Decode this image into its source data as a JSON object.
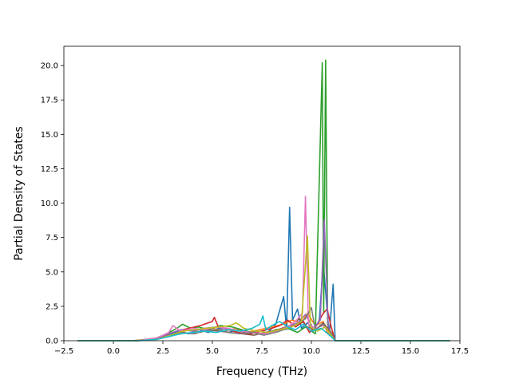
{
  "chart_data": {
    "type": "line",
    "title": "",
    "xlabel": "Frequency (THz)",
    "ylabel": "Partial Density of States",
    "xlim": [
      -2.5,
      17.5
    ],
    "ylim": [
      0,
      21.4
    ],
    "xticks": [
      -2.5,
      0.0,
      2.5,
      5.0,
      7.5,
      10.0,
      12.5,
      15.0,
      17.5
    ],
    "xtick_labels": [
      "−2.5",
      "0.0",
      "2.5",
      "5.0",
      "7.5",
      "10.0",
      "12.5",
      "15.0",
      "17.5"
    ],
    "yticks": [
      0.0,
      2.5,
      5.0,
      7.5,
      10.0,
      12.5,
      15.0,
      17.5,
      20.0
    ],
    "ytick_labels": [
      "0.0",
      "2.5",
      "5.0",
      "7.5",
      "10.0",
      "12.5",
      "15.0",
      "17.5",
      "20.0"
    ],
    "grid": false,
    "legend": "none",
    "series": [
      {
        "color": "#1f77b4",
        "points": [
          [
            -1.8,
            0
          ],
          [
            0.8,
            0
          ],
          [
            1.5,
            0.05
          ],
          [
            2.2,
            0.2
          ],
          [
            2.8,
            0.4
          ],
          [
            3.3,
            0.7
          ],
          [
            3.8,
            0.5
          ],
          [
            4.3,
            0.8
          ],
          [
            4.8,
            0.6
          ],
          [
            5.3,
            0.9
          ],
          [
            5.8,
            0.6
          ],
          [
            6.3,
            0.8
          ],
          [
            6.8,
            0.5
          ],
          [
            7.3,
            0.7
          ],
          [
            7.8,
            0.6
          ],
          [
            8.2,
            1.2
          ],
          [
            8.6,
            3.2
          ],
          [
            8.75,
            0.8
          ],
          [
            8.9,
            9.7
          ],
          [
            9.05,
            1.5
          ],
          [
            9.3,
            2.3
          ],
          [
            9.5,
            0.9
          ],
          [
            9.8,
            1.3
          ],
          [
            10.1,
            0.7
          ],
          [
            10.4,
            1.5
          ],
          [
            10.6,
            5.7
          ],
          [
            10.75,
            3.0
          ],
          [
            10.9,
            0.4
          ],
          [
            11.1,
            4.1
          ],
          [
            11.2,
            0
          ],
          [
            17.0,
            0
          ]
        ]
      },
      {
        "color": "#ff7f0e",
        "points": [
          [
            -1.8,
            0
          ],
          [
            1.0,
            0
          ],
          [
            2.0,
            0.15
          ],
          [
            2.6,
            0.3
          ],
          [
            3.2,
            0.5
          ],
          [
            3.8,
            0.8
          ],
          [
            4.4,
            0.6
          ],
          [
            5.0,
            0.9
          ],
          [
            5.6,
            0.7
          ],
          [
            6.2,
            0.9
          ],
          [
            6.8,
            0.6
          ],
          [
            7.4,
            0.8
          ],
          [
            8.0,
            1.0
          ],
          [
            8.6,
            1.2
          ],
          [
            9.0,
            1.5
          ],
          [
            9.5,
            1.3
          ],
          [
            9.8,
            2.0
          ],
          [
            10.2,
            1.1
          ],
          [
            10.6,
            1.4
          ],
          [
            10.8,
            0.6
          ],
          [
            11.1,
            0.3
          ],
          [
            11.2,
            0
          ],
          [
            17.0,
            0
          ]
        ]
      },
      {
        "color": "#2ca02c",
        "points": [
          [
            -1.8,
            0
          ],
          [
            1.0,
            0
          ],
          [
            2.0,
            0.1
          ],
          [
            2.7,
            0.5
          ],
          [
            3.2,
            0.9
          ],
          [
            3.5,
            1.2
          ],
          [
            3.9,
            0.9
          ],
          [
            4.3,
            1.0
          ],
          [
            4.8,
            0.8
          ],
          [
            5.4,
            1.1
          ],
          [
            6.0,
            1.0
          ],
          [
            6.5,
            0.8
          ],
          [
            7.0,
            0.6
          ],
          [
            7.6,
            0.5
          ],
          [
            8.2,
            0.8
          ],
          [
            8.8,
            0.9
          ],
          [
            9.3,
            0.6
          ],
          [
            9.7,
            1.0
          ],
          [
            10.2,
            0.5
          ],
          [
            10.55,
            20.2
          ],
          [
            10.62,
            2.0
          ],
          [
            10.72,
            20.4
          ],
          [
            10.82,
            1.2
          ],
          [
            11.0,
            0.4
          ],
          [
            11.2,
            0
          ],
          [
            17.0,
            0
          ]
        ]
      },
      {
        "color": "#d62728",
        "points": [
          [
            -1.8,
            0
          ],
          [
            1.2,
            0
          ],
          [
            2.0,
            0.1
          ],
          [
            2.6,
            0.4
          ],
          [
            3.2,
            0.7
          ],
          [
            3.8,
            0.9
          ],
          [
            4.4,
            1.1
          ],
          [
            5.0,
            1.4
          ],
          [
            5.1,
            1.7
          ],
          [
            5.3,
            1.0
          ],
          [
            5.8,
            0.8
          ],
          [
            6.3,
            0.6
          ],
          [
            6.9,
            0.5
          ],
          [
            7.5,
            0.7
          ],
          [
            8.0,
            0.9
          ],
          [
            8.4,
            1.1
          ],
          [
            8.8,
            1.5
          ],
          [
            9.2,
            1.0
          ],
          [
            9.6,
            1.4
          ],
          [
            9.9,
            0.6
          ],
          [
            10.3,
            1.2
          ],
          [
            10.6,
            2.0
          ],
          [
            10.8,
            2.3
          ],
          [
            11.0,
            1.0
          ],
          [
            11.2,
            0
          ],
          [
            17.0,
            0
          ]
        ]
      },
      {
        "color": "#9467bd",
        "points": [
          [
            -1.8,
            0
          ],
          [
            1.2,
            0
          ],
          [
            2.2,
            0.2
          ],
          [
            2.8,
            0.5
          ],
          [
            3.4,
            0.8
          ],
          [
            4.0,
            0.7
          ],
          [
            4.6,
            0.9
          ],
          [
            5.2,
            1.0
          ],
          [
            5.8,
            0.8
          ],
          [
            6.4,
            0.7
          ],
          [
            7.0,
            0.6
          ],
          [
            7.6,
            0.5
          ],
          [
            8.2,
            0.7
          ],
          [
            8.8,
            1.0
          ],
          [
            9.3,
            1.3
          ],
          [
            9.7,
            1.9
          ],
          [
            10.1,
            0.9
          ],
          [
            10.45,
            1.5
          ],
          [
            10.65,
            8.8
          ],
          [
            10.85,
            1.0
          ],
          [
            11.0,
            0.5
          ],
          [
            11.2,
            0
          ],
          [
            17.0,
            0
          ]
        ]
      },
      {
        "color": "#8c564b",
        "points": [
          [
            -1.8,
            0
          ],
          [
            1.2,
            0
          ],
          [
            2.2,
            0.1
          ],
          [
            2.9,
            0.4
          ],
          [
            3.5,
            0.6
          ],
          [
            4.1,
            0.5
          ],
          [
            4.7,
            0.8
          ],
          [
            5.3,
            0.7
          ],
          [
            5.9,
            0.6
          ],
          [
            6.5,
            0.5
          ],
          [
            7.1,
            0.4
          ],
          [
            7.7,
            0.6
          ],
          [
            8.3,
            0.8
          ],
          [
            8.9,
            1.1
          ],
          [
            9.4,
            1.6
          ],
          [
            9.8,
            1.0
          ],
          [
            10.2,
            0.8
          ],
          [
            10.6,
            1.3
          ],
          [
            11.0,
            0.6
          ],
          [
            11.2,
            0
          ],
          [
            17.0,
            0
          ]
        ]
      },
      {
        "color": "#e377c2",
        "points": [
          [
            -1.8,
            0
          ],
          [
            1.2,
            0
          ],
          [
            2.2,
            0.2
          ],
          [
            2.8,
            0.6
          ],
          [
            3.0,
            1.1
          ],
          [
            3.4,
            0.7
          ],
          [
            4.0,
            0.9
          ],
          [
            4.6,
            0.8
          ],
          [
            5.2,
            1.0
          ],
          [
            5.8,
            0.9
          ],
          [
            6.4,
            0.7
          ],
          [
            7.0,
            0.6
          ],
          [
            7.6,
            0.5
          ],
          [
            8.2,
            0.7
          ],
          [
            8.8,
            1.0
          ],
          [
            9.2,
            1.4
          ],
          [
            9.55,
            2.0
          ],
          [
            9.7,
            10.5
          ],
          [
            9.85,
            1.2
          ],
          [
            10.2,
            0.9
          ],
          [
            10.6,
            1.1
          ],
          [
            11.0,
            0.4
          ],
          [
            11.2,
            0
          ],
          [
            17.0,
            0
          ]
        ]
      },
      {
        "color": "#7f7f7f",
        "points": [
          [
            -1.8,
            0
          ],
          [
            1.2,
            0
          ],
          [
            2.2,
            0.1
          ],
          [
            2.8,
            0.3
          ],
          [
            3.4,
            0.6
          ],
          [
            4.0,
            0.5
          ],
          [
            4.6,
            0.7
          ],
          [
            5.2,
            0.8
          ],
          [
            5.8,
            0.6
          ],
          [
            6.4,
            0.5
          ],
          [
            7.0,
            0.6
          ],
          [
            7.6,
            0.4
          ],
          [
            8.2,
            0.6
          ],
          [
            8.8,
            0.9
          ],
          [
            9.3,
            1.2
          ],
          [
            9.7,
            1.6
          ],
          [
            10.0,
            2.4
          ],
          [
            10.2,
            0.8
          ],
          [
            10.6,
            1.2
          ],
          [
            11.0,
            0.5
          ],
          [
            11.2,
            0
          ],
          [
            17.0,
            0
          ]
        ]
      },
      {
        "color": "#bcbd22",
        "points": [
          [
            -1.8,
            0
          ],
          [
            1.2,
            0
          ],
          [
            2.2,
            0.1
          ],
          [
            2.9,
            0.4
          ],
          [
            3.5,
            0.7
          ],
          [
            4.1,
            0.8
          ],
          [
            4.7,
            0.9
          ],
          [
            5.3,
            1.0
          ],
          [
            5.9,
            1.1
          ],
          [
            6.2,
            1.3
          ],
          [
            6.6,
            0.9
          ],
          [
            7.2,
            0.7
          ],
          [
            7.8,
            0.6
          ],
          [
            8.4,
            0.8
          ],
          [
            9.0,
            1.0
          ],
          [
            9.5,
            1.4
          ],
          [
            9.8,
            7.6
          ],
          [
            9.95,
            1.0
          ],
          [
            10.3,
            0.7
          ],
          [
            10.7,
            1.0
          ],
          [
            11.0,
            0.4
          ],
          [
            11.2,
            0
          ],
          [
            17.0,
            0
          ]
        ]
      },
      {
        "color": "#17becf",
        "points": [
          [
            -1.8,
            0
          ],
          [
            1.2,
            0
          ],
          [
            2.2,
            0.1
          ],
          [
            2.8,
            0.3
          ],
          [
            3.4,
            0.5
          ],
          [
            4.0,
            0.6
          ],
          [
            4.6,
            0.7
          ],
          [
            5.2,
            0.6
          ],
          [
            5.8,
            0.8
          ],
          [
            6.4,
            0.7
          ],
          [
            7.0,
            0.9
          ],
          [
            7.4,
            1.2
          ],
          [
            7.55,
            1.8
          ],
          [
            7.7,
            0.8
          ],
          [
            8.0,
            1.1
          ],
          [
            8.4,
            1.4
          ],
          [
            8.8,
            1.0
          ],
          [
            9.2,
            0.8
          ],
          [
            9.6,
            1.2
          ],
          [
            10.0,
            0.7
          ],
          [
            10.5,
            0.9
          ],
          [
            11.0,
            0.3
          ],
          [
            11.2,
            0
          ],
          [
            17.0,
            0
          ]
        ]
      }
    ]
  }
}
